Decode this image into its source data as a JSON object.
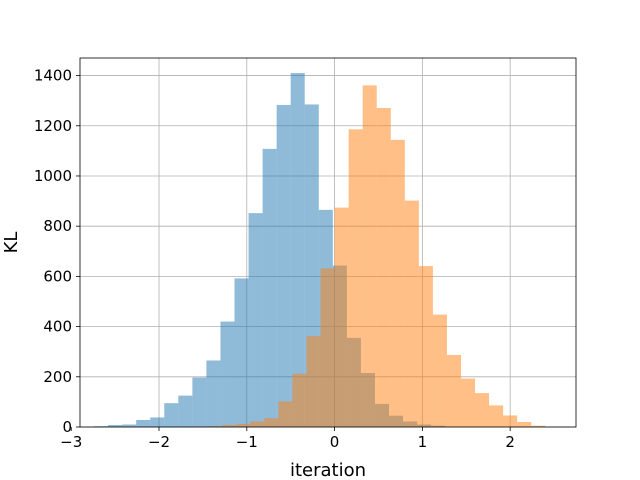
{
  "chart_data": {
    "type": "histogram",
    "xlabel": "iteration",
    "ylabel": "KL",
    "xlim": [
      -2.9,
      2.75
    ],
    "ylim": [
      0,
      1470
    ],
    "x_ticks": [
      -3,
      -2,
      -1,
      0,
      1,
      2
    ],
    "x_tick_labels": [
      "−3",
      "−2",
      "−1",
      "0",
      "1",
      "2"
    ],
    "y_ticks": [
      0,
      200,
      400,
      600,
      800,
      1000,
      1200,
      1400
    ],
    "y_tick_labels": [
      "0",
      "200",
      "400",
      "600",
      "800",
      "1000",
      "1200",
      "1400"
    ],
    "grid": true,
    "legend": "none",
    "series": [
      {
        "color": "#1f77b4",
        "opacity": 0.5,
        "bins": [
          {
            "x0": -2.74,
            "x1": -2.58,
            "value": 3
          },
          {
            "x0": -2.58,
            "x1": -2.42,
            "value": 8
          },
          {
            "x0": -2.42,
            "x1": -2.26,
            "value": 10
          },
          {
            "x0": -2.26,
            "x1": -2.1,
            "value": 28
          },
          {
            "x0": -2.1,
            "x1": -1.94,
            "value": 38
          },
          {
            "x0": -1.94,
            "x1": -1.78,
            "value": 95
          },
          {
            "x0": -1.78,
            "x1": -1.62,
            "value": 125
          },
          {
            "x0": -1.62,
            "x1": -1.46,
            "value": 197
          },
          {
            "x0": -1.46,
            "x1": -1.3,
            "value": 265
          },
          {
            "x0": -1.3,
            "x1": -1.14,
            "value": 420
          },
          {
            "x0": -1.14,
            "x1": -0.98,
            "value": 592
          },
          {
            "x0": -0.98,
            "x1": -0.82,
            "value": 852
          },
          {
            "x0": -0.82,
            "x1": -0.66,
            "value": 1108
          },
          {
            "x0": -0.66,
            "x1": -0.5,
            "value": 1283
          },
          {
            "x0": -0.5,
            "x1": -0.34,
            "value": 1410
          },
          {
            "x0": -0.34,
            "x1": -0.18,
            "value": 1285
          },
          {
            "x0": -0.18,
            "x1": -0.02,
            "value": 865
          },
          {
            "x0": -0.02,
            "x1": 0.14,
            "value": 643
          },
          {
            "x0": 0.14,
            "x1": 0.3,
            "value": 355
          },
          {
            "x0": 0.3,
            "x1": 0.46,
            "value": 215
          },
          {
            "x0": 0.46,
            "x1": 0.62,
            "value": 92
          },
          {
            "x0": 0.62,
            "x1": 0.78,
            "value": 45
          },
          {
            "x0": 0.78,
            "x1": 0.94,
            "value": 22
          },
          {
            "x0": 0.94,
            "x1": 1.1,
            "value": 10
          },
          {
            "x0": 1.1,
            "x1": 1.26,
            "value": 5
          }
        ]
      },
      {
        "color": "#ff7f0e",
        "opacity": 0.5,
        "bins": [
          {
            "x0": -1.44,
            "x1": -1.28,
            "value": 3
          },
          {
            "x0": -1.28,
            "x1": -1.12,
            "value": 8
          },
          {
            "x0": -1.12,
            "x1": -0.96,
            "value": 12
          },
          {
            "x0": -0.96,
            "x1": -0.8,
            "value": 22
          },
          {
            "x0": -0.8,
            "x1": -0.64,
            "value": 35
          },
          {
            "x0": -0.64,
            "x1": -0.48,
            "value": 102
          },
          {
            "x0": -0.48,
            "x1": -0.32,
            "value": 212
          },
          {
            "x0": -0.32,
            "x1": -0.16,
            "value": 362
          },
          {
            "x0": -0.16,
            "x1": 0.0,
            "value": 632
          },
          {
            "x0": 0.0,
            "x1": 0.16,
            "value": 874
          },
          {
            "x0": 0.16,
            "x1": 0.32,
            "value": 1186
          },
          {
            "x0": 0.32,
            "x1": 0.48,
            "value": 1361
          },
          {
            "x0": 0.48,
            "x1": 0.64,
            "value": 1271
          },
          {
            "x0": 0.64,
            "x1": 0.8,
            "value": 1144
          },
          {
            "x0": 0.8,
            "x1": 0.96,
            "value": 902
          },
          {
            "x0": 0.96,
            "x1": 1.12,
            "value": 641
          },
          {
            "x0": 1.12,
            "x1": 1.28,
            "value": 448
          },
          {
            "x0": 1.28,
            "x1": 1.44,
            "value": 287
          },
          {
            "x0": 1.44,
            "x1": 1.6,
            "value": 193
          },
          {
            "x0": 1.6,
            "x1": 1.76,
            "value": 135
          },
          {
            "x0": 1.76,
            "x1": 1.92,
            "value": 86
          },
          {
            "x0": 1.92,
            "x1": 2.08,
            "value": 46
          },
          {
            "x0": 2.08,
            "x1": 2.24,
            "value": 20
          },
          {
            "x0": 2.24,
            "x1": 2.4,
            "value": 5
          }
        ]
      }
    ]
  }
}
